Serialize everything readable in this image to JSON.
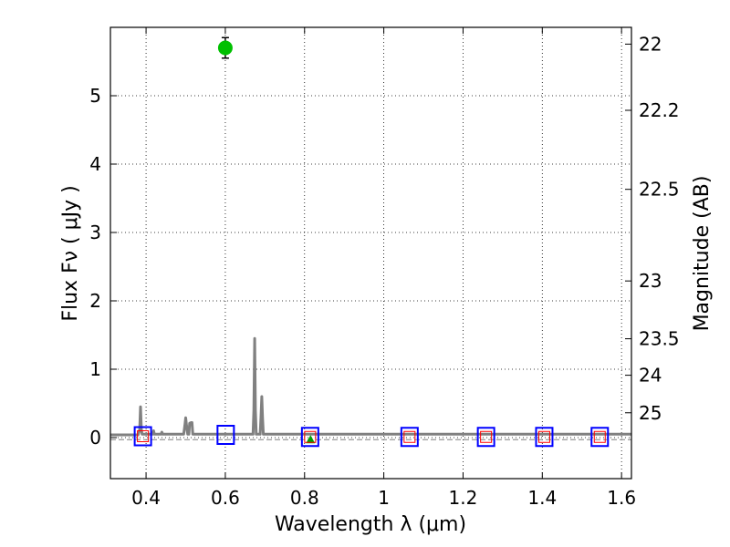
{
  "chart_data": {
    "type": "scatter",
    "title": "",
    "xlabel": "Wavelength  λ (μm)",
    "ylabel": "Flux  Fν  ( μJy )",
    "y2label": "Magnitude (AB)",
    "xlim": [
      0.31,
      1.625
    ],
    "ylim": [
      -0.6,
      6.0
    ],
    "grid": true,
    "x_ticks": [
      {
        "value": 0.4,
        "label": "0.4"
      },
      {
        "value": 0.6,
        "label": "0.6"
      },
      {
        "value": 0.8,
        "label": "0.8"
      },
      {
        "value": 1.0,
        "label": "1"
      },
      {
        "value": 1.2,
        "label": "1.2"
      },
      {
        "value": 1.4,
        "label": "1.4"
      },
      {
        "value": 1.6,
        "label": "1.6"
      }
    ],
    "y_ticks": [
      {
        "value": 0,
        "label": "0"
      },
      {
        "value": 1,
        "label": "1"
      },
      {
        "value": 2,
        "label": "2"
      },
      {
        "value": 3,
        "label": "3"
      },
      {
        "value": 4,
        "label": "4"
      },
      {
        "value": 5,
        "label": "5"
      }
    ],
    "y2_ticks": [
      {
        "value": 22,
        "label": "22"
      },
      {
        "value": 22.2,
        "label": "22.2"
      },
      {
        "value": 22.5,
        "label": "22.5"
      },
      {
        "value": 23,
        "label": "23"
      },
      {
        "value": 23.5,
        "label": "23.5"
      },
      {
        "value": 24,
        "label": "24"
      },
      {
        "value": 25,
        "label": "25"
      }
    ],
    "series": [
      {
        "name": "model spectrum",
        "kind": "line",
        "color": "#808080",
        "points": [
          [
            0.31,
            0.04
          ],
          [
            0.38,
            0.04
          ],
          [
            0.384,
            0.12
          ],
          [
            0.386,
            0.45
          ],
          [
            0.388,
            0.12
          ],
          [
            0.39,
            0.05
          ],
          [
            0.417,
            0.05
          ],
          [
            0.419,
            0.1
          ],
          [
            0.421,
            0.05
          ],
          [
            0.438,
            0.05
          ],
          [
            0.44,
            0.08
          ],
          [
            0.442,
            0.05
          ],
          [
            0.495,
            0.05
          ],
          [
            0.498,
            0.18
          ],
          [
            0.5,
            0.29
          ],
          [
            0.502,
            0.18
          ],
          [
            0.505,
            0.05
          ],
          [
            0.508,
            0.05
          ],
          [
            0.51,
            0.21
          ],
          [
            0.514,
            0.22
          ],
          [
            0.516,
            0.22
          ],
          [
            0.518,
            0.05
          ],
          [
            0.67,
            0.05
          ],
          [
            0.672,
            0.4
          ],
          [
            0.674,
            1.45
          ],
          [
            0.676,
            0.4
          ],
          [
            0.678,
            0.05
          ],
          [
            0.688,
            0.05
          ],
          [
            0.69,
            0.3
          ],
          [
            0.692,
            0.6
          ],
          [
            0.694,
            0.3
          ],
          [
            0.696,
            0.05
          ],
          [
            1.625,
            0.05
          ]
        ]
      },
      {
        "name": "measured flux",
        "kind": "point",
        "color": "#00c000",
        "points": [
          {
            "x": 0.6,
            "y": 5.7,
            "yerr": 0.15
          }
        ]
      },
      {
        "name": "limit marker",
        "kind": "triangle",
        "color": "#00a000",
        "points": [
          {
            "x": 0.815,
            "y": -0.03
          }
        ]
      },
      {
        "name": "filter boxes (blue)",
        "kind": "open-square",
        "color": "#0000ff",
        "points": [
          {
            "x": 0.392,
            "y": 0.02
          },
          {
            "x": 0.601,
            "y": 0.04
          },
          {
            "x": 0.814,
            "y": 0.01
          },
          {
            "x": 1.065,
            "y": 0.01
          },
          {
            "x": 1.258,
            "y": 0.01
          },
          {
            "x": 1.405,
            "y": 0.01
          },
          {
            "x": 1.545,
            "y": 0.01
          }
        ]
      },
      {
        "name": "filter boxes (red)",
        "kind": "open-square-small",
        "color": "#ff0000",
        "points": [
          {
            "x": 0.392,
            "y": 0.02
          },
          {
            "x": 0.814,
            "y": 0.01
          },
          {
            "x": 1.065,
            "y": 0.01
          },
          {
            "x": 1.258,
            "y": 0.01
          },
          {
            "x": 1.405,
            "y": 0.01
          },
          {
            "x": 1.545,
            "y": 0.01
          }
        ]
      }
    ]
  }
}
